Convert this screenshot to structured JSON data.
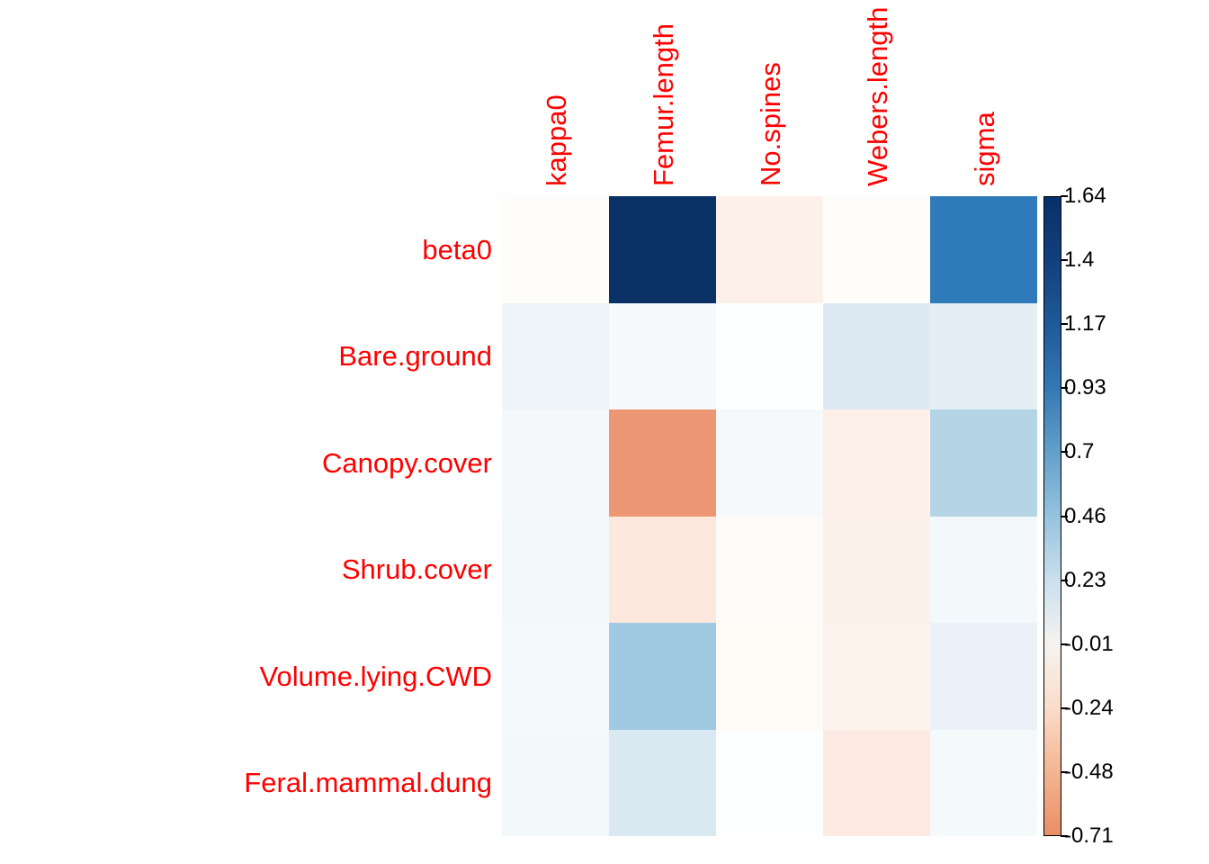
{
  "background": "#ffffff",
  "chart_data": {
    "type": "heatmap",
    "title": "",
    "xlabel": "",
    "ylabel": "",
    "grid": false,
    "legend_position": "right",
    "axis_label_color": "#ff0000",
    "tick_label_color": "#000000",
    "rows": [
      "beta0",
      "Bare.ground",
      "Canopy.cover",
      "Shrub.cover",
      "Volume.lying.CWD",
      "Feral.mammal.dung"
    ],
    "columns": [
      "kappa0",
      "Femur.length",
      "No.spines",
      "Webers.length",
      "sigma"
    ],
    "values": [
      [
        -0.02,
        1.64,
        -0.13,
        -0.02,
        1.1
      ],
      [
        0.13,
        0.06,
        0.01,
        0.27,
        0.22
      ],
      [
        0.07,
        -0.7,
        0.06,
        -0.12,
        0.42
      ],
      [
        0.08,
        -0.2,
        -0.03,
        -0.11,
        0.07
      ],
      [
        0.06,
        0.5,
        -0.04,
        -0.1,
        0.14
      ],
      [
        0.07,
        0.28,
        0.01,
        -0.17,
        0.06
      ]
    ],
    "cell_colors": [
      [
        "#fffdfa",
        "#0a3166",
        "#fdf0e8",
        "#fffdfa",
        "#2f7ab8"
      ],
      [
        "#eef4f8",
        "#f6f9fc",
        "#fdfffe",
        "#ddeaf3",
        "#e4eef5"
      ],
      [
        "#f4f8fb",
        "#ec9673",
        "#f5f9fc",
        "#fcf0e9",
        "#b5d5e6"
      ],
      [
        "#f2f7fa",
        "#fce8dd",
        "#fefaf7",
        "#fdf1eb",
        "#f3f8fa"
      ],
      [
        "#f4f9fb",
        "#a0c9e2",
        "#fefaf6",
        "#fdf2ec",
        "#eaf1f8"
      ],
      [
        "#f3f8fa",
        "#dae8f1",
        "#fdfffe",
        "#fdeae2",
        "#f4f9fc"
      ]
    ],
    "colorbar": {
      "min": -0.71,
      "max": 1.64,
      "tick_labels": [
        "1.64",
        "1.4",
        "1.17",
        "0.93",
        "0.7",
        "0.46",
        "0.23",
        "-0.01",
        "-0.24",
        "-0.48",
        "-0.71"
      ],
      "gradient_stops": [
        {
          "pos": 0,
          "color": "#08306b"
        },
        {
          "pos": 10,
          "color": "#12407d"
        },
        {
          "pos": 20,
          "color": "#1f5a98"
        },
        {
          "pos": 30,
          "color": "#3579b4"
        },
        {
          "pos": 40,
          "color": "#639fcb"
        },
        {
          "pos": 50,
          "color": "#95c3dd"
        },
        {
          "pos": 60,
          "color": "#cadfee"
        },
        {
          "pos": 70,
          "color": "#f6f3f0"
        },
        {
          "pos": 80,
          "color": "#fbddca"
        },
        {
          "pos": 90,
          "color": "#f3b592"
        },
        {
          "pos": 100,
          "color": "#e98e66"
        }
      ]
    }
  }
}
